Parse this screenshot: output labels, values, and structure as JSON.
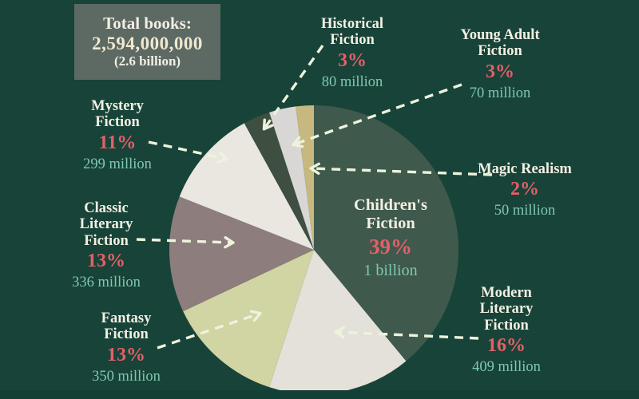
{
  "title_box": {
    "label": "Total books:",
    "value": "2,594,000,000",
    "sub": "(2.6 billion)"
  },
  "colors": {
    "background": "#184338",
    "box_bg": "#5d6963",
    "name_text": "#f2efe3",
    "pct_text": "#e55f68",
    "amount_text": "#7fc8b1",
    "arrow": "#edf3dc"
  },
  "chart_data": {
    "type": "pie",
    "title": "Total books: 2,594,000,000 (2.6 billion)",
    "legend_position": "labels-around-pie-with-dashed-arrows",
    "start_angle_deg": 0,
    "direction": "clockwise",
    "slices": [
      {
        "name": "Children's Fiction",
        "display": "Children's\nFiction",
        "pct": 39,
        "pct_label": "39%",
        "amount": "1 billion",
        "color": "#3f594c"
      },
      {
        "name": "Modern Literary Fiction",
        "display": "Modern\nLiterary\nFiction",
        "pct": 16,
        "pct_label": "16%",
        "amount": "409 million",
        "color": "#e3e1d9"
      },
      {
        "name": "Fantasy Fiction",
        "display": "Fantasy\nFiction",
        "pct": 13,
        "pct_label": "13%",
        "amount": "350 million",
        "color": "#d1d4a3"
      },
      {
        "name": "Classic Literary Fiction",
        "display": "Classic\nLiterary\nFiction",
        "pct": 13,
        "pct_label": "13%",
        "amount": "336 million",
        "color": "#8d7d7c"
      },
      {
        "name": "Mystery Fiction",
        "display": "Mystery\nFiction",
        "pct": 11,
        "pct_label": "11%",
        "amount": "299 million",
        "color": "#eae7e1"
      },
      {
        "name": "Historical Fiction",
        "display": "Historical\nFiction",
        "pct": 3,
        "pct_label": "3%",
        "amount": "80 million",
        "color": "#3e4e41"
      },
      {
        "name": "Young Adult Fiction",
        "display": "Young Adult\nFiction",
        "pct": 3,
        "pct_label": "3%",
        "amount": "70 million",
        "color": "#d8d7d6"
      },
      {
        "name": "Magic Realism",
        "display": "Magic Realism",
        "pct": 2,
        "pct_label": "2%",
        "amount": "50 million",
        "color": "#c6b87f"
      }
    ]
  }
}
